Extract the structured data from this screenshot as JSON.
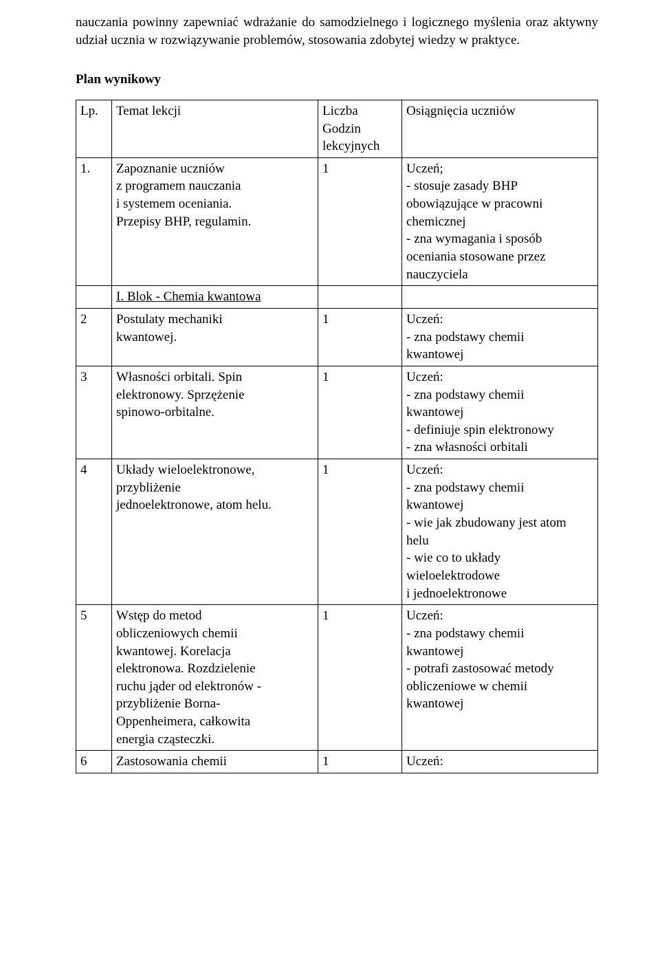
{
  "intro": "nauczania powinny zapewniać wdrażanie do samodzielnego i logicznego myślenia oraz aktywny udział ucznia w rozwiązywanie problemów, stosowania zdobytej wiedzy w praktyce.",
  "heading": "Plan wynikowy",
  "header": {
    "col1": "Lp.",
    "col2": "Temat lekcji",
    "col3a": "Liczba",
    "col3b": " Godzin",
    "col3c": "lekcyjnych",
    "col4": "Osiągnięcia uczniów"
  },
  "rows": [
    {
      "num": "1.",
      "topic_l1": "Zapoznanie uczniów",
      "topic_l2": "z programem nauczania",
      "topic_l3": "i systemem oceniania.",
      "topic_l4": "Przepisy BHP, regulamin.",
      "hours": "1",
      "out_l1": "Uczeń;",
      "out_l2": "- stosuje zasady BHP",
      "out_l3": "obowiązujące w pracowni",
      "out_l4": "chemicznej",
      "out_l5": "- zna wymagania i sposób",
      "out_l6": "oceniania stosowane przez",
      "out_l7": "nauczyciela"
    },
    {
      "block": "I. Blok -  Chemia kwantowa"
    },
    {
      "num": "2",
      "topic_l1": "Postulaty mechaniki",
      "topic_l2": "kwantowej.",
      "hours": "1",
      "out_l1": "Uczeń:",
      "out_l2": "- zna podstawy chemii",
      "out_l3": "kwantowej"
    },
    {
      "num": "3",
      "topic_l1": "Własności orbitali. Spin",
      "topic_l2": "elektronowy. Sprzężenie",
      "topic_l3": "spinowo-orbitalne.",
      "hours": "1",
      "out_l1": "Uczeń:",
      "out_l2": "- zna podstawy chemii",
      "out_l3": "kwantowej",
      "out_l4": "- definiuje spin elektronowy",
      "out_l5": "- zna własności orbitali"
    },
    {
      "num": "4",
      "topic_l1": "Układy wieloelektronowe,",
      "topic_l2": "przybliżenie",
      "topic_l3": "jednoelektronowe, atom helu.",
      "hours": "1",
      "out_l1": "Uczeń:",
      "out_l2": "- zna podstawy chemii",
      "out_l3": "kwantowej",
      "out_l4": "- wie jak zbudowany jest atom",
      "out_l5": "helu",
      "out_l6": "- wie co to układy",
      "out_l7": "wieloelektrodowe",
      "out_l8": "i jednoelektronowe"
    },
    {
      "num": "5",
      "topic_l1": "Wstęp do metod",
      "topic_l2": "obliczeniowych chemii",
      "topic_l3": "kwantowej. Korelacja",
      "topic_l4": "elektronowa. Rozdzielenie",
      "topic_l5": "ruchu jąder od elektronów -",
      "topic_l6": "przybliżenie Borna-",
      "topic_l7": "Oppenheimera, całkowita",
      "topic_l8": "energia cząsteczki.",
      "hours": "1",
      "out_l1": "Uczeń:",
      "out_l2": "- zna podstawy chemii",
      "out_l3": "kwantowej",
      "out_l4": "- potrafi zastosować metody",
      "out_l5": "obliczeniowe w chemii",
      "out_l6": "kwantowej"
    },
    {
      "num": "6",
      "topic_l1": "Zastosowania chemii",
      "hours": "1",
      "out_l1": "Uczeń:"
    }
  ]
}
